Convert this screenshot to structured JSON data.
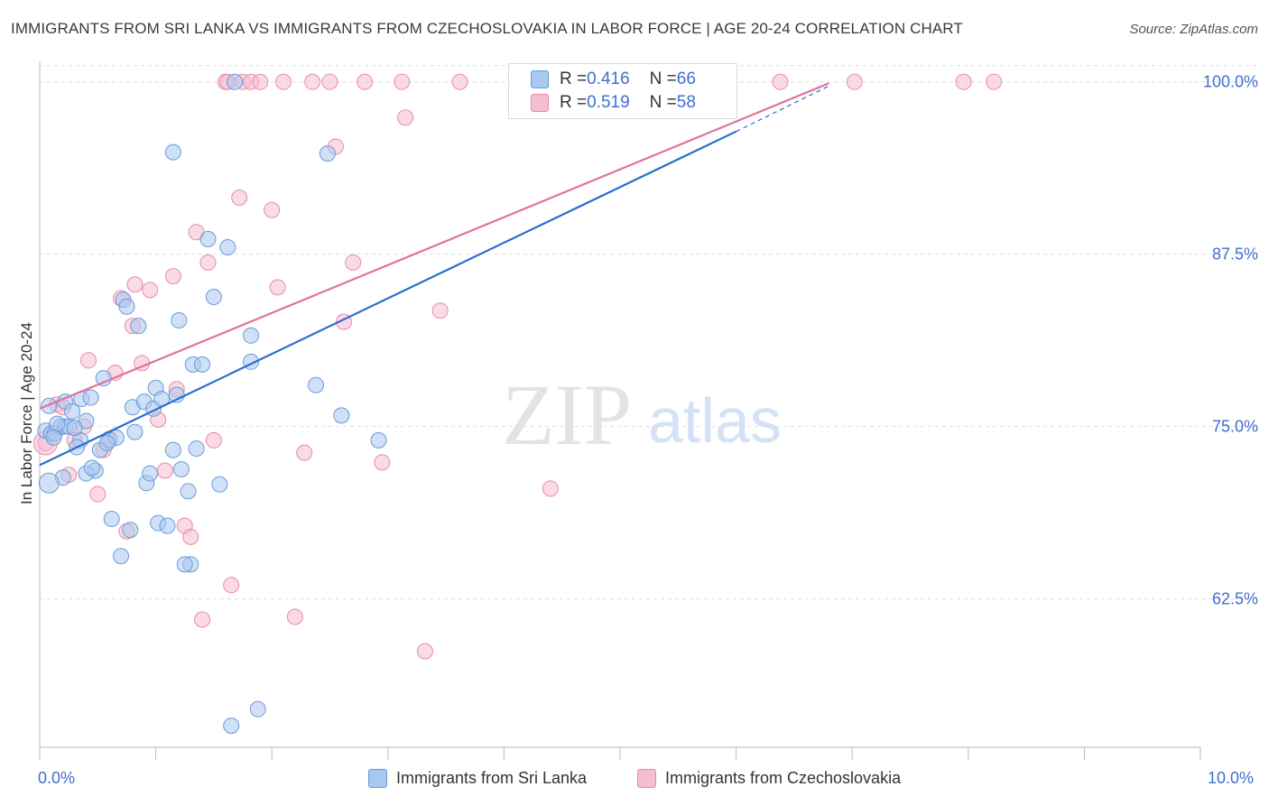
{
  "title": "IMMIGRANTS FROM SRI LANKA VS IMMIGRANTS FROM CZECHOSLOVAKIA IN LABOR FORCE | AGE 20-24 CORRELATION CHART",
  "source": "Source: ZipAtlas.com",
  "watermark": {
    "zip": "ZIP",
    "atlas": "atlas"
  },
  "legend": [
    {
      "r_label": "R = ",
      "r_value": "0.416",
      "n_label": "N = ",
      "n_value": "66"
    },
    {
      "r_label": "R = ",
      "r_value": "0.519",
      "n_label": "N = ",
      "n_value": "58"
    }
  ],
  "colors": {
    "blue_fill": "#a9c8f0",
    "blue_stroke": "#6a9ad8",
    "blue_line": "#2a6fd0",
    "pink_fill": "#f6bcd0",
    "pink_stroke": "#e88aab",
    "pink_line": "#e0739a",
    "axis_label": "#3f6fcf",
    "grid": "#dddddd"
  },
  "chart_data": {
    "type": "scatter",
    "title": "IMMIGRANTS FROM SRI LANKA VS IMMIGRANTS FROM CZECHOSLOVAKIA IN LABOR FORCE | AGE 20-24 CORRELATION CHART",
    "xlabel": "",
    "ylabel": "In Labor Force | Age 20-24",
    "xlim": [
      0,
      10
    ],
    "ylim": [
      52,
      100.7
    ],
    "x_tick_labels": [
      "0.0%",
      "10.0%"
    ],
    "y_ticks": [
      62.5,
      75.0,
      87.5,
      100.0
    ],
    "y_tick_labels": [
      "62.5%",
      "75.0%",
      "87.5%",
      "100.0%"
    ],
    "grid": true,
    "legend_position": "top-center",
    "series": [
      {
        "name": "Immigrants from Sri Lanka",
        "color": "#a9c8f0",
        "trend": {
          "x": [
            0.0,
            6.0
          ],
          "y": [
            72.2,
            96.4
          ],
          "dashed_to": [
            6.8,
            99.7
          ]
        },
        "points": [
          [
            0.05,
            74.7
          ],
          [
            0.1,
            74.5
          ],
          [
            0.13,
            74.5
          ],
          [
            0.18,
            75.0
          ],
          [
            0.22,
            75.0
          ],
          [
            0.25,
            75.0
          ],
          [
            0.2,
            71.3
          ],
          [
            0.22,
            76.8
          ],
          [
            0.35,
            74.0
          ],
          [
            0.32,
            73.5
          ],
          [
            0.28,
            76.1
          ],
          [
            0.36,
            77.0
          ],
          [
            0.4,
            75.4
          ],
          [
            0.44,
            77.1
          ],
          [
            0.48,
            71.8
          ],
          [
            0.52,
            73.3
          ],
          [
            0.55,
            78.5
          ],
          [
            0.6,
            74.0
          ],
          [
            0.62,
            68.3
          ],
          [
            0.66,
            74.2
          ],
          [
            0.7,
            65.6
          ],
          [
            0.72,
            84.2
          ],
          [
            0.75,
            83.7
          ],
          [
            0.8,
            76.4
          ],
          [
            0.82,
            74.6
          ],
          [
            0.85,
            82.3
          ],
          [
            0.9,
            76.8
          ],
          [
            0.92,
            70.9
          ],
          [
            0.95,
            71.6
          ],
          [
            0.98,
            76.3
          ],
          [
            1.0,
            77.8
          ],
          [
            1.02,
            68.0
          ],
          [
            1.05,
            77.0
          ],
          [
            1.1,
            67.8
          ],
          [
            1.15,
            73.3
          ],
          [
            1.15,
            94.9
          ],
          [
            1.2,
            82.7
          ],
          [
            1.22,
            71.9
          ],
          [
            1.28,
            70.3
          ],
          [
            1.3,
            65.0
          ],
          [
            1.32,
            79.5
          ],
          [
            1.35,
            73.4
          ],
          [
            1.4,
            79.5
          ],
          [
            1.45,
            88.6
          ],
          [
            1.5,
            84.4
          ],
          [
            1.55,
            70.8
          ],
          [
            1.62,
            88.0
          ],
          [
            1.65,
            53.3
          ],
          [
            1.68,
            100.0
          ],
          [
            1.82,
            79.7
          ],
          [
            1.82,
            81.6
          ],
          [
            1.88,
            54.5
          ],
          [
            2.38,
            78.0
          ],
          [
            2.48,
            94.8
          ],
          [
            2.6,
            75.8
          ],
          [
            2.92,
            74.0
          ],
          [
            0.08,
            76.5
          ],
          [
            0.15,
            75.2
          ],
          [
            0.3,
            74.9
          ],
          [
            0.4,
            71.6
          ],
          [
            0.58,
            73.8
          ],
          [
            0.78,
            67.5
          ],
          [
            1.25,
            65.0
          ],
          [
            1.18,
            77.3
          ],
          [
            0.12,
            74.2
          ],
          [
            0.45,
            72.0
          ]
        ]
      },
      {
        "name": "Immigrants from Czechoslovakia",
        "color": "#f6bcd0",
        "trend": {
          "x": [
            0.0,
            6.8
          ],
          "y": [
            76.3,
            99.9
          ]
        },
        "points": [
          [
            0.05,
            73.8
          ],
          [
            0.15,
            76.6
          ],
          [
            0.2,
            76.4
          ],
          [
            0.25,
            71.5
          ],
          [
            0.3,
            74.0
          ],
          [
            0.38,
            75.0
          ],
          [
            0.42,
            79.8
          ],
          [
            0.5,
            70.1
          ],
          [
            0.55,
            73.3
          ],
          [
            0.6,
            74.1
          ],
          [
            0.65,
            78.9
          ],
          [
            0.7,
            84.3
          ],
          [
            0.75,
            67.4
          ],
          [
            0.8,
            82.3
          ],
          [
            0.82,
            85.3
          ],
          [
            0.88,
            79.6
          ],
          [
            0.95,
            84.9
          ],
          [
            1.02,
            75.5
          ],
          [
            1.08,
            71.8
          ],
          [
            1.15,
            85.9
          ],
          [
            1.18,
            77.7
          ],
          [
            1.25,
            67.8
          ],
          [
            1.3,
            67.0
          ],
          [
            1.35,
            89.1
          ],
          [
            1.4,
            61.0
          ],
          [
            1.45,
            86.9
          ],
          [
            1.5,
            74.0
          ],
          [
            1.6,
            100.0
          ],
          [
            1.62,
            100.0
          ],
          [
            1.65,
            63.5
          ],
          [
            1.72,
            91.6
          ],
          [
            1.75,
            100.0
          ],
          [
            1.82,
            100.0
          ],
          [
            1.9,
            100.0
          ],
          [
            2.0,
            90.7
          ],
          [
            2.05,
            85.1
          ],
          [
            2.1,
            100.0
          ],
          [
            2.2,
            61.2
          ],
          [
            2.28,
            73.1
          ],
          [
            2.35,
            100.0
          ],
          [
            2.5,
            100.0
          ],
          [
            2.55,
            95.3
          ],
          [
            2.62,
            82.6
          ],
          [
            2.7,
            86.9
          ],
          [
            2.8,
            100.0
          ],
          [
            2.95,
            72.4
          ],
          [
            3.12,
            100.0
          ],
          [
            3.15,
            97.4
          ],
          [
            3.32,
            58.7
          ],
          [
            3.45,
            83.4
          ],
          [
            3.62,
            100.0
          ],
          [
            4.4,
            70.5
          ],
          [
            5.55,
            100.0
          ],
          [
            6.38,
            100.0
          ],
          [
            7.02,
            100.0
          ],
          [
            7.96,
            100.0
          ],
          [
            8.22,
            100.0
          ],
          [
            0.1,
            74.5
          ]
        ]
      }
    ]
  },
  "bottom_legend": [
    {
      "label": "Immigrants from Sri Lanka"
    },
    {
      "label": "Immigrants from Czechoslovakia"
    }
  ]
}
